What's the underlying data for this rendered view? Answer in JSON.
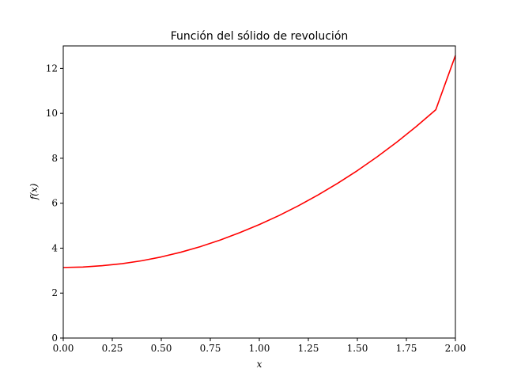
{
  "chart_data": {
    "type": "line",
    "title": "Función del sólido de revolución",
    "xlabel": "x",
    "ylabel": "f(x)",
    "xlim": [
      0,
      2
    ],
    "ylim": [
      0,
      13
    ],
    "xticks": [
      "0.00",
      "0.25",
      "0.50",
      "0.75",
      "1.00",
      "1.25",
      "1.50",
      "1.75",
      "2.00"
    ],
    "yticks": [
      "0",
      "2",
      "4",
      "6",
      "8",
      "10",
      "12"
    ],
    "grid": false,
    "line_color": "#ff0000",
    "series": [
      {
        "x": [
          0,
          0.1,
          0.2,
          0.3,
          0.4,
          0.5,
          0.6,
          0.7,
          0.8,
          0.9,
          1.0,
          1.1,
          1.2,
          1.3,
          1.4,
          1.5,
          1.6,
          1.7,
          1.8,
          1.9,
          2.0
        ],
        "values": [
          3.14,
          3.16,
          3.22,
          3.31,
          3.44,
          3.61,
          3.82,
          4.07,
          4.36,
          4.69,
          5.05,
          5.45,
          5.89,
          6.37,
          6.89,
          7.45,
          8.06,
          8.71,
          9.41,
          10.16,
          12.57
        ]
      }
    ]
  }
}
